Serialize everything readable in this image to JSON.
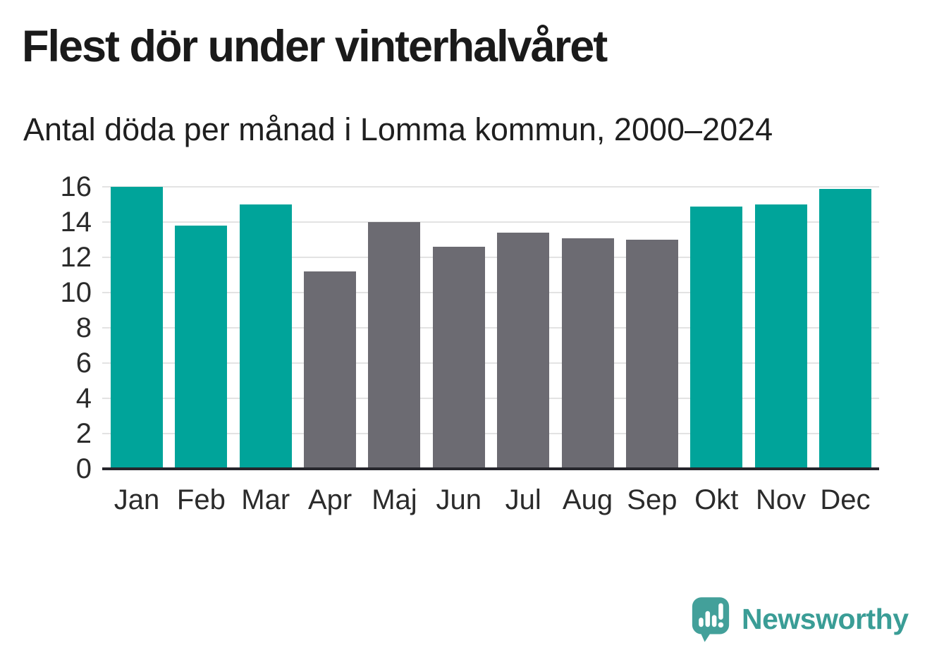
{
  "chart_data": {
    "type": "bar",
    "title": "Flest dör under vinterhalvåret",
    "subtitle": "Antal döda per månad i Lomma kommun, 2000–2024",
    "categories": [
      "Jan",
      "Feb",
      "Mar",
      "Apr",
      "Maj",
      "Jun",
      "Jul",
      "Aug",
      "Sep",
      "Okt",
      "Nov",
      "Dec"
    ],
    "values": [
      16,
      13.8,
      15,
      11.2,
      14,
      12.6,
      13.4,
      13.1,
      13,
      14.9,
      15,
      15.9
    ],
    "bar_groups": [
      "winter",
      "winter",
      "winter",
      "summer",
      "summer",
      "summer",
      "summer",
      "summer",
      "summer",
      "winter",
      "winter",
      "winter"
    ],
    "palette": {
      "winter": "#00a49a",
      "summer": "#6c6b72"
    },
    "xlabel": "",
    "ylabel": "",
    "ylim": [
      0,
      16
    ],
    "yticks": [
      0,
      2,
      4,
      6,
      8,
      10,
      12,
      14,
      16
    ],
    "grid": true,
    "legend": "none",
    "gridline_color": "#e3e3e3",
    "axis_line_color": "#26262c",
    "text_color": "#1a1a1a"
  },
  "logo": {
    "text": "Newsworthy",
    "icon": "newsworthy-bubble-chart-icon",
    "icon_color": "#43a09a",
    "text_color": "#3a9d96"
  }
}
